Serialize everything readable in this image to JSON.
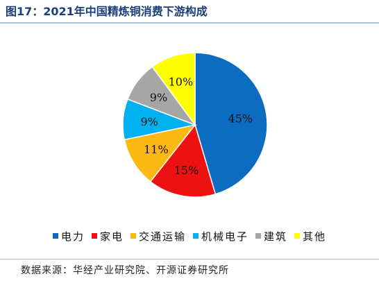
{
  "figure": {
    "title": "图17：2021年中国精炼铜消费下游构成",
    "source": "数据来源：华经产业研究院、开源证券研究所"
  },
  "chart_data": {
    "type": "pie",
    "title": "",
    "unit": "%",
    "legend_position": "bottom",
    "slices": [
      {
        "label": "电力",
        "value": 45,
        "display": "45%",
        "color": "#0b6cc0"
      },
      {
        "label": "家电",
        "value": 15,
        "display": "15%",
        "color": "#ee1111"
      },
      {
        "label": "交通运输",
        "value": 11,
        "display": "11%",
        "color": "#fdb913"
      },
      {
        "label": "机械电子",
        "value": 9,
        "display": "9%",
        "color": "#00b0f0"
      },
      {
        "label": "建筑",
        "value": 9,
        "display": "9%",
        "color": "#a6a6a6"
      },
      {
        "label": "其他",
        "value": 10,
        "display": "10%",
        "color": "#ffff00"
      }
    ]
  }
}
